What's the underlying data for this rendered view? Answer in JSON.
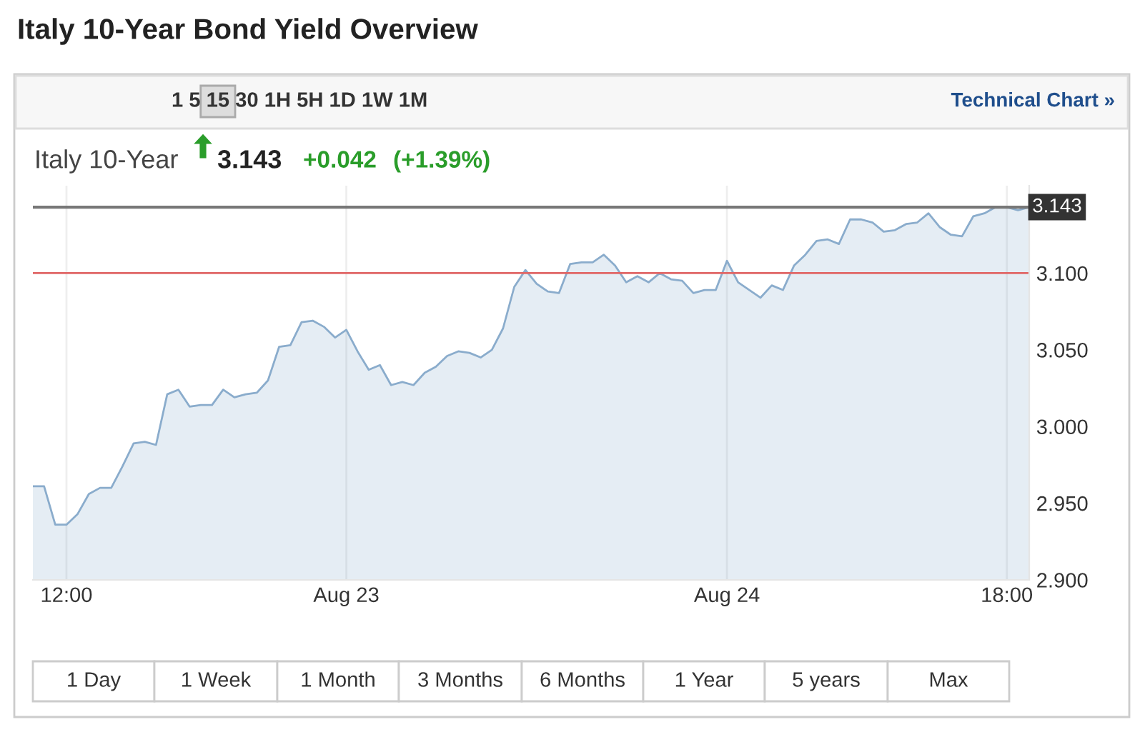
{
  "chart_data": {
    "type": "area",
    "title": "Italy 10-Year Bond Yield Overview",
    "subtitle": "Italy 10-Year",
    "annotations": [
      "3.143",
      "+0.042",
      "(+1.39%)",
      "1 5 15 30 1H 5H 1D 1W 1M",
      "Technical Chart »",
      "1 Day",
      "1 Week",
      "1 Month",
      "3 Months",
      "6 Months",
      "1 Year",
      "5 years",
      "Max"
    ],
    "categories": [
      null,
      null,
      null,
      "12:00",
      null,
      null,
      null,
      null,
      null,
      null,
      null,
      null,
      null,
      null,
      null,
      null,
      null,
      null,
      null,
      null,
      null,
      null,
      null,
      null,
      null,
      null,
      null,
      null,
      "Aug 23",
      null,
      null,
      null,
      null,
      null,
      null,
      null,
      null,
      null,
      null,
      null,
      null,
      null,
      null,
      null,
      null,
      null,
      null,
      null,
      null,
      null,
      null,
      null,
      null,
      null,
      null,
      null,
      null,
      null,
      null,
      null,
      null,
      null,
      "Aug 24",
      null,
      null,
      null,
      null,
      null,
      null,
      null,
      null,
      null,
      null,
      null,
      null,
      null,
      null,
      null,
      null,
      null,
      null,
      null,
      null,
      null,
      null,
      null,
      null,
      "18:00",
      null,
      null
    ],
    "series": [
      {
        "color": "#8aaccc",
        "values": [
          2.961,
          2.961,
          2.936,
          2.936,
          2.943,
          2.956,
          2.96,
          2.96,
          2.974,
          2.989,
          2.99,
          2.988,
          3.021,
          3.024,
          3.013,
          3.014,
          3.014,
          3.024,
          3.019,
          3.021,
          3.022,
          3.03,
          3.052,
          3.053,
          3.068,
          3.069,
          3.065,
          3.058,
          3.063,
          3.049,
          3.037,
          3.04,
          3.027,
          3.029,
          3.027,
          3.035,
          3.039,
          3.046,
          3.049,
          3.048,
          3.045,
          3.05,
          3.064,
          3.091,
          3.102,
          3.093,
          3.088,
          3.087,
          3.106,
          3.107,
          3.107,
          3.112,
          3.105,
          3.094,
          3.098,
          3.094,
          3.1,
          3.096,
          3.095,
          3.087,
          3.089,
          3.089,
          3.108,
          3.094,
          3.089,
          3.084,
          3.092,
          3.089,
          3.105,
          3.112,
          3.121,
          3.122,
          3.119,
          3.135,
          3.135,
          3.133,
          3.127,
          3.128,
          3.132,
          3.133,
          3.139,
          3.13,
          3.125,
          3.124,
          3.137,
          3.139,
          3.143,
          3.143,
          3.141,
          3.143
        ]
      }
    ],
    "ylim": [
      2.9,
      3.157
    ],
    "yticks": [
      {
        "value": 2.9,
        "label": "2.900"
      },
      {
        "value": 2.95,
        "label": "2.950"
      },
      {
        "value": 3.0,
        "label": "3.000"
      },
      {
        "value": 3.05,
        "label": "3.050"
      },
      {
        "value": 3.1,
        "label": "3.100"
      }
    ],
    "ref_lines": [
      {
        "axis": "y",
        "value": 3.143,
        "label": "3.143",
        "color": "#777777"
      },
      {
        "axis": "y",
        "value": 3.1,
        "color": "#e06666"
      }
    ],
    "grid": "x",
    "legend": false
  }
}
